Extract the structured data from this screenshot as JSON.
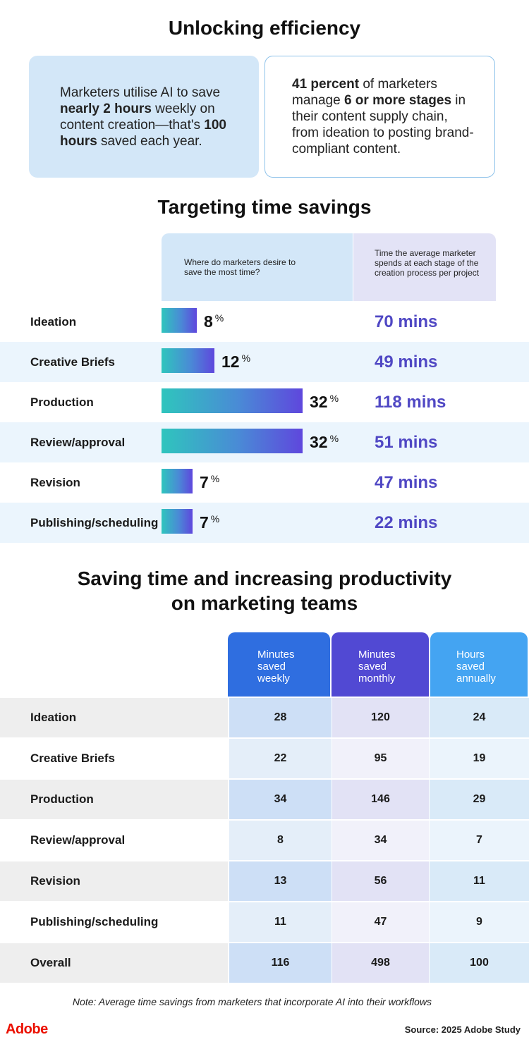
{
  "section1": {
    "title": "Unlocking efficiency",
    "card_left": {
      "t1": "Marketers utilise AI to save ",
      "b1": "nearly 2 hours",
      "t2": " weekly on content creation—that's ",
      "b2": "100 hours",
      "t3": " saved each year."
    },
    "card_right": {
      "b1": "41 percent",
      "t1": " of marketers manage ",
      "b2": "6 or more stages",
      "t2": " in their content supply chain, from ideation to posting brand-compliant content."
    }
  },
  "section2": {
    "title": "Targeting time savings",
    "col_a_header": "Where do marketers desire to save the most time?",
    "col_b_header": "Time the average marketer spends at each stage of the creation process per project",
    "pct_symbol": "%"
  },
  "section3": {
    "title_line1": "Saving time and increasing productivity",
    "title_line2": "on marketing teams",
    "headers": [
      "Minutes saved weekly",
      "Minutes saved monthly",
      "Hours saved annually"
    ]
  },
  "chart_data": [
    {
      "type": "bar",
      "orientation": "horizontal",
      "categories": [
        "Ideation",
        "Creative Briefs",
        "Production",
        "Review/approval",
        "Revision",
        "Publishing/scheduling"
      ],
      "series": [
        {
          "name": "Where do marketers desire to save the most time?",
          "values": [
            8,
            12,
            32,
            32,
            7,
            7
          ],
          "unit": "%"
        }
      ],
      "paired_values": {
        "name": "Time the average marketer spends at each stage of the creation process per project",
        "values": [
          70,
          49,
          118,
          51,
          47,
          22
        ],
        "labels": [
          "70 mins",
          "49 mins",
          "118 mins",
          "51 mins",
          "47 mins",
          "22 mins"
        ]
      },
      "colors": {
        "bar_start": "#2fc5bd",
        "bar_end": "#5f47dd",
        "mins_text": "#5048c4"
      }
    },
    {
      "type": "table",
      "columns": [
        "",
        "Minutes saved weekly",
        "Minutes saved monthly",
        "Hours saved annually"
      ],
      "rows": [
        {
          "label": "Ideation",
          "values": [
            28,
            120,
            24
          ]
        },
        {
          "label": "Creative Briefs",
          "values": [
            22,
            95,
            19
          ]
        },
        {
          "label": "Production",
          "values": [
            34,
            146,
            29
          ]
        },
        {
          "label": "Review/approval",
          "values": [
            8,
            34,
            7
          ]
        },
        {
          "label": "Revision",
          "values": [
            13,
            56,
            11
          ]
        },
        {
          "label": "Publishing/scheduling",
          "values": [
            11,
            47,
            9
          ]
        },
        {
          "label": "Overall",
          "values": [
            116,
            498,
            100
          ]
        }
      ],
      "colors": {
        "weekly": "#2f6ee0",
        "monthly": "#5149d3",
        "annually": "#44a4f2"
      }
    }
  ],
  "footer": {
    "note": "Note: Average time savings from marketers that incorporate AI into their workflows",
    "logo": "Adobe",
    "source": "Source: 2025 Adobe Study"
  }
}
